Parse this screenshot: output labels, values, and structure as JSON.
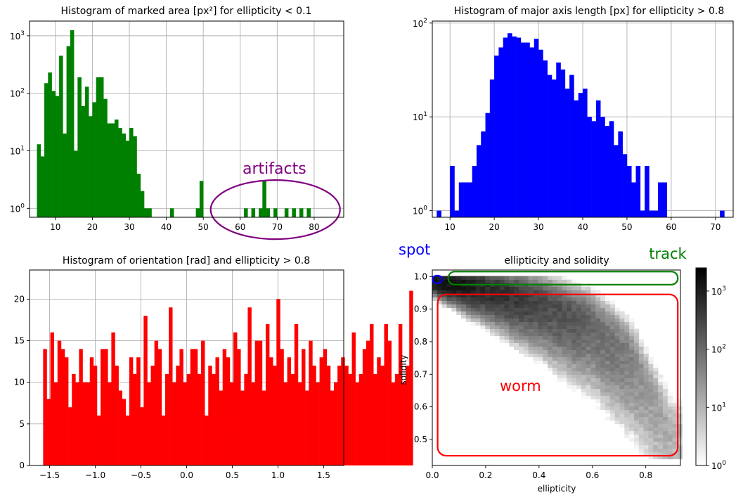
{
  "chart_data": [
    {
      "type": "bar",
      "title": "Histogram of marked area [px²] for ellipticity < 0.1",
      "xlabel": "",
      "ylabel": "",
      "y_scale": "log",
      "xlim": [
        3,
        88
      ],
      "ylim": [
        0.7,
        1800
      ],
      "grid": true,
      "bar_color": "#008000",
      "x_ticks": [
        10,
        20,
        30,
        40,
        50,
        60,
        70,
        80
      ],
      "y_ticks": [
        {
          "value": 1,
          "base": "10",
          "exp": "0"
        },
        {
          "value": 10,
          "base": "10",
          "exp": "1"
        },
        {
          "value": 100,
          "base": "10",
          "exp": "2"
        },
        {
          "value": 1000,
          "base": "10",
          "exp": "3"
        }
      ],
      "bin_width": 1,
      "bin_start": [
        5,
        6,
        7,
        8,
        9,
        10,
        11,
        12,
        13,
        14,
        15,
        16,
        17,
        18,
        19,
        20,
        21,
        22,
        23,
        24,
        25,
        26,
        27,
        28,
        29,
        30,
        31,
        32,
        33,
        34,
        35,
        41,
        48,
        49,
        61,
        63,
        65,
        66,
        67,
        69,
        72,
        74,
        76,
        78
      ],
      "values": [
        13,
        8,
        150,
        230,
        110,
        90,
        450,
        20,
        660,
        1250,
        10,
        190,
        60,
        130,
        40,
        70,
        190,
        190,
        80,
        30,
        30,
        35,
        25,
        20,
        15,
        25,
        18,
        4,
        2,
        1,
        1,
        1,
        1,
        3,
        1,
        1,
        1,
        3,
        1,
        1,
        1,
        1,
        1,
        1
      ],
      "annotations": [
        {
          "text": "artifacts",
          "color": "#800080",
          "x": 70,
          "y": 5
        },
        {
          "shape": "ellipse",
          "color": "#800080",
          "cx": 69.5,
          "cy": 0.95,
          "rx": 17.5
        }
      ]
    },
    {
      "type": "bar",
      "title": "Histogram of major axis length [px] for ellipticity > 0.8",
      "xlabel": "",
      "ylabel": "",
      "y_scale": "log",
      "xlim": [
        6,
        74
      ],
      "ylim": [
        0.85,
        105
      ],
      "grid": true,
      "bar_color": "#0000ff",
      "x_ticks": [
        10,
        20,
        30,
        40,
        50,
        60,
        70
      ],
      "y_ticks": [
        {
          "value": 1,
          "base": "10",
          "exp": "0"
        },
        {
          "value": 10,
          "base": "10",
          "exp": "1"
        },
        {
          "value": 100,
          "base": "10",
          "exp": "2"
        }
      ],
      "bin_width": 1,
      "bin_start": [
        7,
        10,
        11,
        12,
        13,
        14,
        15,
        16,
        17,
        18,
        19,
        20,
        21,
        22,
        23,
        24,
        25,
        26,
        27,
        28,
        29,
        30,
        31,
        32,
        33,
        34,
        35,
        36,
        37,
        38,
        39,
        40,
        41,
        42,
        43,
        44,
        45,
        46,
        47,
        48,
        49,
        50,
        51,
        52,
        53,
        54,
        55,
        56,
        57,
        58,
        71
      ],
      "values": [
        1,
        3,
        1,
        2,
        2,
        2,
        3,
        5,
        7,
        11,
        25,
        45,
        55,
        70,
        78,
        72,
        70,
        62,
        62,
        55,
        68,
        52,
        40,
        28,
        25,
        38,
        32,
        20,
        28,
        15,
        18,
        20,
        10,
        9,
        15,
        10,
        8,
        9,
        5,
        7,
        4,
        3,
        2,
        3,
        1,
        3,
        1,
        1,
        2,
        2,
        1
      ]
    },
    {
      "type": "bar",
      "title": "Histogram of orientation [rad] and ellipticity > 0.8",
      "xlabel": "",
      "ylabel": "",
      "xlim": [
        -1.72,
        1.72
      ],
      "ylim": [
        0,
        23.5
      ],
      "grid": true,
      "bar_color": "#ff0000",
      "x_ticks": [
        -1.5,
        -1.0,
        -0.5,
        0.0,
        0.5,
        1.0,
        1.5
      ],
      "x_tick_labels": [
        "−1.5",
        "−1.0",
        "−0.5",
        "0.0",
        "0.5",
        "1.0",
        "1.5"
      ],
      "y_ticks": [
        0,
        5,
        10,
        15,
        20
      ],
      "bin_start": -1.571,
      "bin_width": 0.0393,
      "values": [
        14,
        8,
        16,
        10,
        15,
        14,
        13,
        7,
        11,
        10,
        14,
        10,
        10,
        13,
        12,
        6,
        14,
        14,
        10,
        16,
        12,
        9,
        8,
        6,
        13,
        11,
        13,
        7,
        18,
        10,
        12,
        15,
        14,
        6,
        11,
        19,
        10,
        12,
        14,
        10,
        11,
        14,
        14,
        11,
        15,
        6,
        12,
        11,
        13,
        9,
        14,
        13,
        10,
        16,
        14,
        9,
        11,
        19,
        10,
        15,
        15,
        9,
        17,
        13,
        12,
        20,
        14,
        10,
        13,
        11,
        17,
        10,
        14,
        9,
        15,
        12,
        10,
        13,
        14,
        12,
        9,
        10,
        12,
        13,
        12,
        11,
        16,
        10,
        11,
        14,
        15,
        17,
        11,
        13,
        12,
        17,
        15,
        10,
        11,
        17,
        10,
        12,
        21
      ]
    },
    {
      "type": "heatmap",
      "title": "ellipticity and solidity",
      "xlabel": "ellipticity",
      "ylabel": "solidity",
      "xlim": [
        0,
        0.93
      ],
      "ylim": [
        0.42,
        1.02
      ],
      "grid": false,
      "color_scale": "log",
      "colormap": "Greys",
      "x_ticks": [
        0.0,
        0.2,
        0.4,
        0.6,
        0.8
      ],
      "x_tick_labels": [
        "0.0",
        "0.2",
        "0.4",
        "0.6",
        "0.8"
      ],
      "y_ticks": [
        0.5,
        0.6,
        0.7,
        0.8,
        0.9,
        1.0
      ],
      "y_tick_labels": [
        "0.5",
        "0.6",
        "0.7",
        "0.8",
        "0.9",
        "1.0"
      ],
      "colorbar": {
        "min": 1,
        "max": 2500,
        "ticks": [
          {
            "value": 1,
            "base": "10",
            "exp": "0"
          },
          {
            "value": 10,
            "base": "10",
            "exp": "1"
          },
          {
            "value": 100,
            "base": "10",
            "exp": "2"
          },
          {
            "value": 1000,
            "base": "10",
            "exp": "3"
          }
        ]
      },
      "cell_size": 0.018,
      "band": {
        "solidity_center": [
          [
            0.0,
            0.99
          ],
          [
            0.2,
            0.97
          ],
          [
            0.4,
            0.93
          ],
          [
            0.6,
            0.86
          ],
          [
            0.75,
            0.75
          ],
          [
            0.9,
            0.52
          ]
        ],
        "peak_count_at_center": [
          [
            0.0,
            2500
          ],
          [
            0.2,
            800
          ],
          [
            0.4,
            250
          ],
          [
            0.6,
            80
          ],
          [
            0.8,
            15
          ],
          [
            0.93,
            5
          ]
        ]
      },
      "annotations": [
        {
          "text": "spot",
          "color": "#0000ff",
          "shape": "ellipse",
          "cx": 0.019,
          "cy": 0.991,
          "rx": 0.018,
          "ry": 0.012
        },
        {
          "text": "track",
          "color": "#008000",
          "shape": "rounded-rect",
          "x0": 0.06,
          "x1": 0.92,
          "y0": 0.975,
          "y1": 1.015
        },
        {
          "text": "worm",
          "color": "#ff0000",
          "shape": "rounded-rect",
          "x0": 0.02,
          "x1": 0.92,
          "y0": 0.45,
          "y1": 0.945
        }
      ]
    }
  ]
}
